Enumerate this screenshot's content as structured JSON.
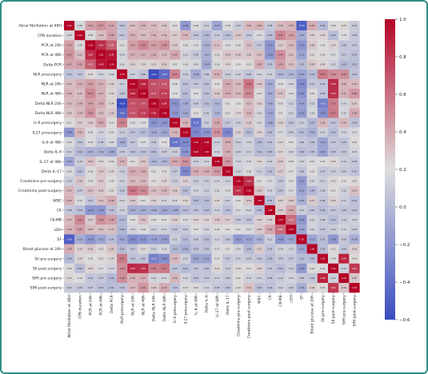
{
  "chart_data": {
    "type": "heatmap",
    "title": "",
    "xlabel": "",
    "ylabel": "",
    "variables": [
      "Atrial fibrillation at 48H",
      "CPB duration",
      "PCR at 24h",
      "PCR at 48h",
      "Delta PCR",
      "NLR presurgery",
      "NLR at 24h",
      "NLR at 48h",
      "Delta NLR 24h",
      "Delta NLR 48h",
      "IL-6 presurgery",
      "IL17 presurgery",
      "IL-6 at 48h",
      "Delta IL-6",
      "IL-17 at 48h",
      "Delta IL-17",
      "Creatinine pre-surgery",
      "Creatinine post-surgery",
      "WBC",
      "CK",
      "CK-MB",
      "LDH",
      "EF",
      "Blood glucose at 24h",
      "SII pre-surgery",
      "SII post-surgery",
      "SIRI pre-surgery",
      "SIRI post-surgery"
    ],
    "matrix": [
      [
        1.0,
        0.16,
        0.43,
        0.47,
        0.41,
        0.05,
        0.32,
        0.36,
        0.33,
        0.29,
        0.21,
        -0.18,
        0.18,
        0.11,
        -0.11,
        0.18,
        0.1,
        0.34,
        0.36,
        0.08,
        0.33,
        0.36,
        -0.5,
        0.38,
        0.0,
        0.18,
        0.23,
        0.09
      ],
      [
        0.16,
        1.0,
        0.18,
        0.32,
        0.42,
        0.07,
        0.37,
        0.32,
        0.36,
        0.34,
        0.27,
        0.35,
        0.06,
        0.0,
        0.1,
        0.03,
        0.29,
        0.09,
        0.17,
        0.03,
        0.52,
        0.43,
        -0.07,
        0.25,
        0.24,
        0.02,
        0.19,
        0.08
      ],
      [
        0.43,
        0.18,
        1.0,
        0.85,
        0.67,
        0.22,
        0.43,
        0.52,
        0.43,
        0.48,
        0.28,
        0.18,
        0.18,
        -0.04,
        0.31,
        0.18,
        0.18,
        0.31,
        0.07,
        -0.19,
        0.27,
        0.33,
        -0.19,
        0.28,
        0.19,
        0.24,
        0.06,
        0.07
      ],
      [
        0.47,
        0.32,
        0.85,
        1.0,
        0.94,
        0.14,
        0.37,
        0.37,
        0.38,
        0.33,
        0.4,
        0.13,
        0.08,
        -0.04,
        0.23,
        0.29,
        0.28,
        0.28,
        0.31,
        -0.18,
        0.48,
        0.31,
        -0.11,
        0.23,
        0.22,
        0.17,
        0.07,
        0.03
      ],
      [
        0.41,
        0.42,
        0.67,
        0.94,
        1.0,
        0.16,
        0.26,
        0.24,
        0.24,
        0.28,
        0.21,
        0.18,
        0.16,
        -0.09,
        0.18,
        0.24,
        0.2,
        0.22,
        0.38,
        0.04,
        0.43,
        0.31,
        0.02,
        0.29,
        0.24,
        0.13,
        0.0,
        0.02
      ],
      [
        0.05,
        0.07,
        0.22,
        0.14,
        0.16,
        1.0,
        0.11,
        0.06,
        -0.63,
        -0.43,
        0.53,
        0.1,
        -0.08,
        0.08,
        0.37,
        0.1,
        0.12,
        0.06,
        0.14,
        0.12,
        -0.01,
        -0.02,
        -0.11,
        0.01,
        0.57,
        0.49,
        0.49,
        0.04
      ],
      [
        0.32,
        0.37,
        0.43,
        0.37,
        0.26,
        0.11,
        1.0,
        0.88,
        0.72,
        0.7,
        0.18,
        0.04,
        0.07,
        0.04,
        0.21,
        0.39,
        0.33,
        0.58,
        0.28,
        -0.07,
        0.19,
        0.14,
        -0.25,
        0.07,
        0.05,
        0.86,
        0.36,
        0.34
      ],
      [
        0.36,
        0.32,
        0.52,
        0.37,
        0.24,
        0.06,
        0.88,
        1.0,
        0.73,
        0.78,
        0.19,
        0.01,
        0.19,
        0.04,
        0.29,
        0.38,
        0.34,
        0.51,
        0.21,
        -0.07,
        0.31,
        0.18,
        -0.21,
        0.22,
        0.05,
        0.84,
        0.37,
        0.46
      ],
      [
        0.33,
        0.36,
        0.43,
        0.38,
        0.24,
        -0.63,
        0.72,
        0.73,
        1.0,
        0.89,
        -0.21,
        -0.08,
        0.08,
        0.01,
        -0.02,
        0.21,
        0.21,
        0.32,
        0.25,
        -0.06,
        0.18,
        0.11,
        -0.14,
        0.12,
        -0.31,
        0.55,
        0.14,
        0.28
      ],
      [
        0.29,
        0.34,
        0.48,
        0.33,
        0.28,
        -0.43,
        0.7,
        0.78,
        0.89,
        1.0,
        -0.19,
        -0.1,
        0.21,
        0.09,
        -0.02,
        0.22,
        0.24,
        0.35,
        0.15,
        -0.1,
        0.21,
        0.12,
        -0.16,
        0.16,
        -0.23,
        0.57,
        0.15,
        0.39
      ],
      [
        0.21,
        0.27,
        0.28,
        0.4,
        0.21,
        0.53,
        0.18,
        0.19,
        -0.21,
        -0.19,
        1.0,
        0.35,
        -0.38,
        0.1,
        0.4,
        0.07,
        0.1,
        0.28,
        0.16,
        -0.08,
        0.26,
        0.06,
        0.11,
        -0.01,
        0.34,
        0.05,
        0.34,
        0.04
      ],
      [
        -0.18,
        0.35,
        0.18,
        0.13,
        0.18,
        0.1,
        0.04,
        0.01,
        -0.08,
        -0.1,
        0.35,
        1.0,
        -0.27,
        -0.2,
        0.48,
        -0.27,
        0.25,
        0.01,
        0.24,
        0.02,
        0.17,
        0.09,
        0.01,
        -0.05,
        0.12,
        0.01,
        0.14,
        0.17
      ],
      [
        0.18,
        0.06,
        0.18,
        0.08,
        0.16,
        -0.08,
        0.07,
        0.19,
        0.08,
        0.21,
        -0.38,
        -0.27,
        1.0,
        0.98,
        0.11,
        0.38,
        0.1,
        0.14,
        0.0,
        0.05,
        0.24,
        0.21,
        0.08,
        0.04,
        -0.12,
        0.07,
        0.05,
        0.22
      ],
      [
        0.11,
        0.0,
        -0.04,
        -0.04,
        -0.09,
        0.08,
        0.04,
        0.04,
        0.01,
        0.09,
        0.1,
        -0.2,
        0.98,
        1.0,
        0.14,
        0.38,
        0.1,
        0.11,
        0.02,
        0.02,
        0.24,
        0.14,
        0.02,
        0.05,
        -0.12,
        0.05,
        0.07,
        0.14
      ],
      [
        -0.11,
        0.1,
        0.31,
        0.23,
        0.18,
        0.37,
        0.21,
        0.29,
        -0.02,
        -0.02,
        0.4,
        0.48,
        0.11,
        0.14,
        1.0,
        0.45,
        0.14,
        0.16,
        0.24,
        0.12,
        0.28,
        0.18,
        0.13,
        0.17,
        0.21,
        0.23,
        0.11,
        0.08
      ],
      [
        0.18,
        0.03,
        0.18,
        0.29,
        0.24,
        0.1,
        0.39,
        0.38,
        0.21,
        0.22,
        0.07,
        -0.27,
        0.38,
        0.38,
        0.45,
        1.0,
        0.12,
        0.18,
        0.11,
        0.03,
        0.27,
        0.21,
        0.06,
        0.21,
        0.07,
        0.1,
        0.09,
        0.05
      ],
      [
        0.1,
        0.29,
        0.18,
        0.28,
        0.2,
        0.12,
        0.33,
        0.34,
        0.21,
        0.24,
        0.1,
        0.25,
        0.1,
        0.1,
        0.14,
        0.12,
        1.0,
        0.84,
        0.21,
        0.17,
        0.08,
        0.21,
        -0.17,
        0.15,
        0.11,
        0.23,
        0.21,
        0.22
      ],
      [
        0.34,
        0.09,
        0.31,
        0.28,
        0.22,
        0.06,
        0.58,
        0.51,
        0.32,
        0.35,
        0.28,
        0.01,
        0.14,
        0.11,
        0.16,
        0.18,
        0.84,
        1.0,
        0.29,
        0.14,
        0.05,
        0.17,
        -0.12,
        0.0,
        0.09,
        0.21,
        0.12,
        0.31
      ],
      [
        0.36,
        0.17,
        0.07,
        0.31,
        0.38,
        0.14,
        0.28,
        0.21,
        0.25,
        0.15,
        0.16,
        0.24,
        0.0,
        0.02,
        0.24,
        0.11,
        0.21,
        0.29,
        1.0,
        0.02,
        0.25,
        0.28,
        -0.05,
        0.27,
        0.06,
        0.25,
        0.11,
        0.03
      ],
      [
        0.08,
        0.03,
        -0.19,
        -0.18,
        0.04,
        0.12,
        -0.07,
        -0.07,
        -0.06,
        -0.1,
        -0.08,
        0.02,
        0.05,
        0.02,
        0.12,
        0.03,
        0.17,
        0.14,
        0.02,
        1.0,
        0.26,
        0.4,
        0.11,
        0.05,
        0.02,
        0.07,
        0.06,
        0.04
      ],
      [
        0.33,
        0.52,
        0.27,
        0.48,
        0.43,
        -0.01,
        0.19,
        0.31,
        0.18,
        0.21,
        0.26,
        0.17,
        0.24,
        0.24,
        0.28,
        0.27,
        0.08,
        0.05,
        0.25,
        0.26,
        1.0,
        0.61,
        -0.18,
        0.14,
        0.09,
        0.02,
        0.1,
        0.12
      ],
      [
        0.36,
        0.43,
        0.33,
        0.31,
        0.31,
        -0.02,
        0.14,
        0.18,
        0.11,
        0.12,
        0.06,
        0.09,
        0.21,
        0.14,
        0.18,
        0.21,
        0.21,
        0.17,
        0.28,
        0.4,
        0.61,
        1.0,
        -0.12,
        0.13,
        0.07,
        0.1,
        0.14,
        0.09
      ],
      [
        -0.5,
        -0.07,
        -0.19,
        -0.11,
        0.02,
        -0.11,
        -0.25,
        -0.21,
        -0.14,
        -0.16,
        0.11,
        0.01,
        0.08,
        0.02,
        0.13,
        0.06,
        -0.17,
        -0.12,
        -0.05,
        0.11,
        -0.18,
        -0.12,
        1.0,
        -0.11,
        0.01,
        -0.18,
        0.08,
        -0.06
      ],
      [
        0.38,
        0.25,
        0.28,
        0.23,
        0.29,
        0.01,
        0.07,
        0.22,
        0.12,
        0.16,
        -0.01,
        -0.05,
        0.04,
        0.05,
        0.17,
        0.21,
        0.15,
        0.0,
        0.27,
        0.05,
        0.14,
        0.13,
        -0.11,
        1.0,
        0.02,
        0.22,
        0.06,
        0.26
      ],
      [
        0.0,
        0.24,
        0.19,
        0.22,
        0.24,
        0.57,
        0.05,
        0.05,
        -0.31,
        -0.23,
        0.34,
        0.12,
        -0.12,
        -0.12,
        0.21,
        0.07,
        0.11,
        0.09,
        0.06,
        0.02,
        0.09,
        0.07,
        0.01,
        0.02,
        1.0,
        0.18,
        0.89,
        0.22
      ],
      [
        0.18,
        0.02,
        0.24,
        0.17,
        0.13,
        0.49,
        0.86,
        0.84,
        0.55,
        0.57,
        0.05,
        0.01,
        0.07,
        0.05,
        0.23,
        0.1,
        0.23,
        0.21,
        0.25,
        0.07,
        0.02,
        0.1,
        -0.18,
        0.22,
        0.18,
        1.0,
        0.12,
        0.81
      ],
      [
        0.23,
        0.19,
        0.06,
        0.07,
        0.0,
        0.49,
        0.36,
        0.37,
        0.14,
        0.15,
        0.34,
        0.14,
        0.05,
        0.07,
        0.11,
        0.09,
        0.21,
        0.12,
        0.11,
        0.06,
        0.1,
        0.14,
        0.08,
        0.06,
        0.89,
        0.12,
        1.0,
        0.29
      ],
      [
        0.09,
        0.08,
        0.07,
        0.03,
        0.02,
        0.04,
        0.34,
        0.46,
        0.28,
        0.39,
        0.04,
        0.17,
        0.22,
        0.14,
        0.08,
        0.05,
        0.22,
        0.31,
        0.03,
        0.04,
        0.12,
        0.09,
        -0.06,
        0.26,
        0.22,
        0.81,
        0.29,
        1.0
      ]
    ],
    "colorbar": {
      "min": -0.6,
      "max": 1.0,
      "ticks": [
        -0.6,
        -0.4,
        -0.2,
        0.0,
        0.2,
        0.4,
        0.6,
        0.8,
        1.0
      ],
      "tick_labels": [
        "−0.6",
        "−0.4",
        "−0.2",
        "0.0",
        "0.2",
        "0.4",
        "0.6",
        "0.8",
        "1.0"
      ],
      "colormap": "coolwarm",
      "colors": [
        "#3b4cc0",
        "#dddddd",
        "#b40426"
      ]
    }
  }
}
